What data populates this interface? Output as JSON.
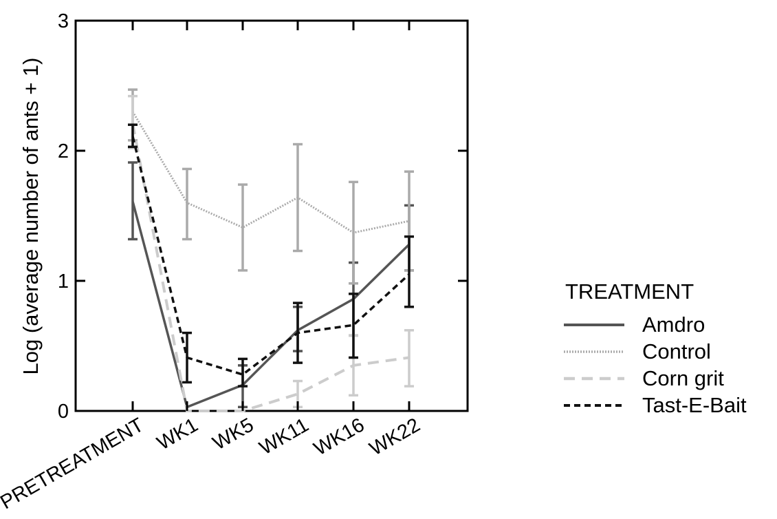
{
  "chart_data": {
    "type": "line",
    "ylabel": "Log (average number of ants + 1)",
    "ylim": [
      0,
      3
    ],
    "yticks": [
      "0",
      "1",
      "2",
      "3"
    ],
    "categories": [
      "PRETREATMENT",
      "WK1",
      "WK5",
      "WK11",
      "WK16",
      "WK22"
    ],
    "legend": {
      "title": "TREATMENT",
      "position": "right"
    },
    "series": [
      {
        "name": "Amdro",
        "color": "#555555",
        "dash": "solid",
        "values": [
          1.61,
          0.03,
          0.2,
          0.62,
          0.86,
          1.28
        ],
        "err_low": [
          1.32,
          0.03,
          0.03,
          0.46,
          0.58,
          1.08
        ],
        "err_high": [
          1.91,
          0.03,
          0.35,
          0.8,
          1.14,
          1.58
        ]
      },
      {
        "name": "Control",
        "color": "#aaaaaa",
        "dash": "dotted",
        "values": [
          2.3,
          1.6,
          1.41,
          1.64,
          1.37,
          1.46
        ],
        "err_low": [
          2.08,
          1.32,
          1.08,
          1.23,
          0.98,
          1.08
        ],
        "err_high": [
          2.47,
          1.86,
          1.74,
          2.05,
          1.76,
          1.84
        ]
      },
      {
        "name": "Corn grit",
        "color": "#cccccc",
        "dash": "dashed",
        "values": [
          2.21,
          0.0,
          0.0,
          0.13,
          0.35,
          0.41
        ],
        "err_low": [
          2.02,
          0.0,
          0.0,
          0.03,
          0.12,
          0.19
        ],
        "err_high": [
          2.42,
          0.0,
          0.0,
          0.23,
          0.58,
          0.62
        ]
      },
      {
        "name": "Tast-E-Bait",
        "color": "#111111",
        "dash": "short-dashed",
        "values": [
          2.11,
          0.41,
          0.28,
          0.6,
          0.66,
          1.05
        ],
        "err_low": [
          2.03,
          0.22,
          0.19,
          0.37,
          0.41,
          0.8
        ],
        "err_high": [
          2.2,
          0.6,
          0.4,
          0.83,
          0.9,
          1.34
        ]
      }
    ]
  }
}
